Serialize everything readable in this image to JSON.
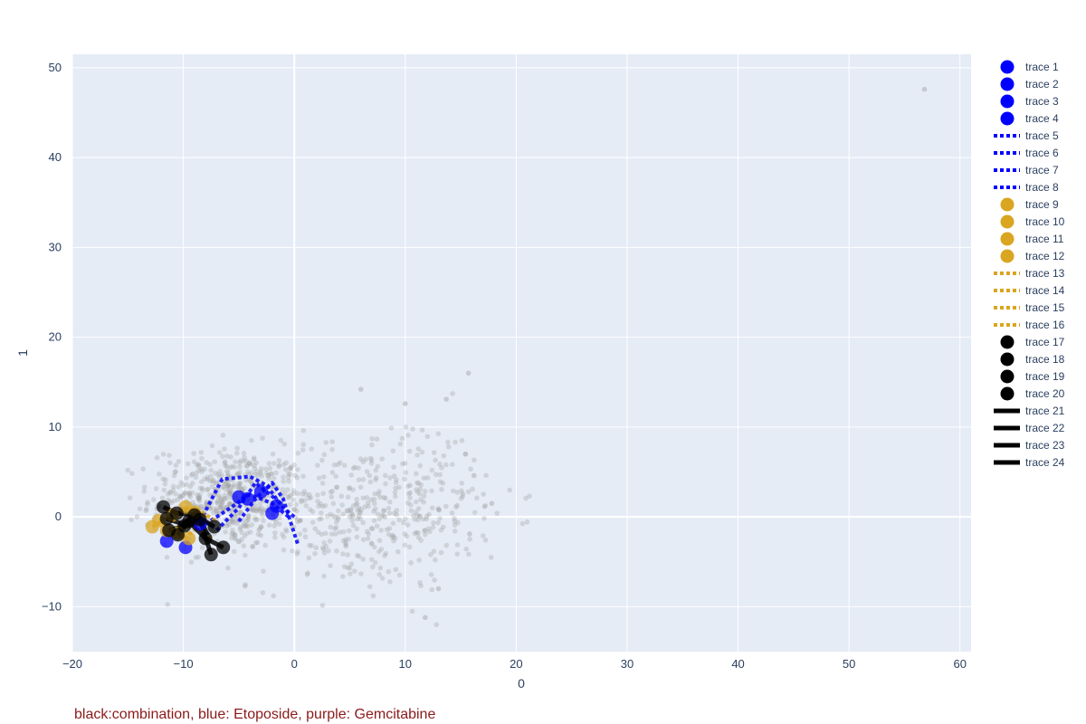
{
  "chart_data": {
    "type": "scatter",
    "title": "",
    "xlabel": "0",
    "ylabel": "1",
    "xlim": [
      -20,
      61
    ],
    "ylim": [
      -15,
      51.5
    ],
    "x_ticks": [
      -20,
      -10,
      0,
      10,
      20,
      30,
      40,
      50,
      60
    ],
    "y_ticks": [
      -10,
      0,
      10,
      20,
      30,
      40,
      50
    ],
    "grid": true,
    "legend_position": "right",
    "annotation": "black:combination, blue: Etoposide, purple: Gemcitabine",
    "colors": {
      "plot_bg": "#e5ecf6",
      "grid": "#ffffff",
      "background_points": "#a0a0a0",
      "blue": "#0000ff",
      "gold": "#daa520",
      "black": "#000000",
      "annotation": "#8b1a1a"
    },
    "background_points": {
      "clusters": [
        {
          "center": [
            -6,
            2
          ],
          "spread": [
            3.5,
            3.5
          ],
          "count": 550
        },
        {
          "center": [
            6,
            0
          ],
          "spread": [
            5,
            5
          ],
          "count": 350
        },
        {
          "center": [
            12,
            3
          ],
          "spread": [
            4,
            5
          ],
          "count": 90
        }
      ],
      "outliers": [
        [
          56.8,
          47.6
        ],
        [
          15.7,
          16
        ],
        [
          13.7,
          13.1
        ],
        [
          6,
          14.2
        ],
        [
          10,
          12.6
        ],
        [
          17.8,
          1.5
        ],
        [
          13,
          -8
        ],
        [
          11.8,
          -11.2
        ],
        [
          15.8,
          -1.9
        ],
        [
          16.2,
          4.6
        ]
      ]
    },
    "series": [
      {
        "name": "trace 1",
        "mode": "markers",
        "color": "#0000ff",
        "x": [
          -11.5,
          -9.8
        ],
        "y": [
          -2.7,
          -3.4
        ]
      },
      {
        "name": "trace 2",
        "mode": "markers",
        "color": "#0000ff",
        "x": [
          -5.0,
          -3.0
        ],
        "y": [
          2.2,
          2.8
        ]
      },
      {
        "name": "trace 3",
        "mode": "markers",
        "color": "#0000ff",
        "x": [
          -2.0,
          -1.6
        ],
        "y": [
          0.4,
          1.2
        ]
      },
      {
        "name": "trace 4",
        "mode": "markers",
        "color": "#0000ff",
        "x": [
          -4.2,
          -8.5
        ],
        "y": [
          2.0,
          -0.8
        ]
      },
      {
        "name": "trace 5",
        "mode": "lines",
        "dash": "dot",
        "color": "#0000ff",
        "x": [
          -8.5,
          -6.5,
          -4.0,
          -2.5,
          -1.0,
          0.2
        ],
        "y": [
          -0.5,
          4.2,
          4.5,
          3.5,
          1.0,
          -0.2
        ]
      },
      {
        "name": "trace 6",
        "mode": "lines",
        "dash": "dot",
        "color": "#0000ff",
        "x": [
          -5.0,
          -3.5,
          -2.0,
          -1.0,
          0.3
        ],
        "y": [
          -0.5,
          2.0,
          3.8,
          2.0,
          -3.0
        ]
      },
      {
        "name": "trace 7",
        "mode": "lines",
        "dash": "dot",
        "color": "#0000ff",
        "x": [
          -8.0,
          -6.0,
          -4.0,
          -2.0,
          -0.5
        ],
        "y": [
          -0.8,
          0.8,
          2.5,
          1.5,
          0.0
        ]
      },
      {
        "name": "trace 8",
        "mode": "lines",
        "dash": "dot",
        "color": "#0000ff",
        "x": [
          -7.0,
          -5.0,
          -3.5,
          -1.5
        ],
        "y": [
          -1.5,
          1.0,
          3.8,
          1.8
        ]
      },
      {
        "name": "trace 9",
        "mode": "markers",
        "color": "#daa520",
        "x": [
          -12.8,
          -9.8
        ],
        "y": [
          -1.1,
          1.1
        ]
      },
      {
        "name": "trace 10",
        "mode": "markers",
        "color": "#daa520",
        "x": [
          -12.2,
          -11.0
        ],
        "y": [
          -0.4,
          0.2
        ]
      },
      {
        "name": "trace 11",
        "mode": "markers",
        "color": "#daa520",
        "x": [
          -9.0,
          -10.5
        ],
        "y": [
          0.5,
          -1.8
        ]
      },
      {
        "name": "trace 12",
        "mode": "markers",
        "color": "#daa520",
        "x": [
          -11.5,
          -9.5
        ],
        "y": [
          -1.5,
          -2.4
        ]
      },
      {
        "name": "trace 13",
        "mode": "lines",
        "dash": "dot",
        "color": "#daa520",
        "x": [
          -12.8,
          -11.0,
          -9.5,
          -8.0
        ],
        "y": [
          -1.1,
          0.2,
          1.1,
          0.0
        ]
      },
      {
        "name": "trace 14",
        "mode": "lines",
        "dash": "dot",
        "color": "#daa520",
        "x": [
          -12.2,
          -10.5,
          -9.0,
          -7.5
        ],
        "y": [
          -0.4,
          -1.8,
          -0.5,
          -2.5
        ]
      },
      {
        "name": "trace 15",
        "mode": "lines",
        "dash": "dot",
        "color": "#daa520",
        "x": [
          -11.5,
          -10.0,
          -8.5
        ],
        "y": [
          -1.5,
          -2.4,
          -1.0
        ]
      },
      {
        "name": "trace 16",
        "mode": "lines",
        "dash": "dot",
        "color": "#daa520",
        "x": [
          -10.5,
          -9.0,
          -7.0
        ],
        "y": [
          0.5,
          1.0,
          -0.5
        ]
      },
      {
        "name": "trace 17",
        "mode": "markers",
        "color": "#000000",
        "x": [
          -11.8,
          -11.3,
          -9.0,
          -7.2
        ],
        "y": [
          1.1,
          -1.5,
          0.2,
          -1.1
        ]
      },
      {
        "name": "trace 18",
        "mode": "markers",
        "color": "#000000",
        "x": [
          -10.6,
          -9.9,
          -8.5
        ],
        "y": [
          0.4,
          -1.0,
          -0.3
        ]
      },
      {
        "name": "trace 19",
        "mode": "markers",
        "color": "#000000",
        "x": [
          -7.5,
          -6.4,
          -10.5
        ],
        "y": [
          -4.2,
          -3.4,
          -2.0
        ]
      },
      {
        "name": "trace 20",
        "mode": "markers",
        "color": "#000000",
        "x": [
          -9.5,
          -8.0,
          -11.5
        ],
        "y": [
          -0.5,
          -2.4,
          -0.2
        ]
      },
      {
        "name": "trace 21",
        "mode": "lines",
        "color": "#000000",
        "x": [
          -11.8,
          -10.6,
          -9.0,
          -7.2
        ],
        "y": [
          1.1,
          0.4,
          0.2,
          -1.1
        ]
      },
      {
        "name": "trace 22",
        "mode": "lines",
        "color": "#000000",
        "x": [
          -11.3,
          -9.9,
          -8.5,
          -7.5
        ],
        "y": [
          -1.5,
          -1.0,
          -0.3,
          -4.2
        ]
      },
      {
        "name": "trace 23",
        "mode": "lines",
        "color": "#000000",
        "x": [
          -10.5,
          -9.5,
          -8.0,
          -6.4
        ],
        "y": [
          -2.0,
          -0.5,
          -2.4,
          -3.4
        ]
      },
      {
        "name": "trace 24",
        "mode": "lines",
        "color": "#000000",
        "x": [
          -11.5,
          -10.0,
          -8.8,
          -7.8
        ],
        "y": [
          -0.2,
          -0.8,
          0.5,
          -2.0
        ]
      }
    ]
  }
}
